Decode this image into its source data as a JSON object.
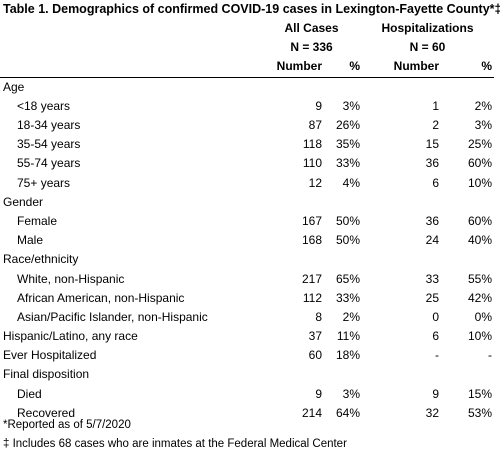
{
  "title": "Table 1. Demographics of confirmed COVID-19 cases in Lexington-Fayette County*‡",
  "groups": [
    {
      "name": "All Cases",
      "n": "N = 336"
    },
    {
      "name": "Hospitalizations",
      "n": "N = 60"
    }
  ],
  "columns": {
    "number": "Number",
    "percent": "%"
  },
  "rows": [
    {
      "label": "Age",
      "indent": false,
      "header": true
    },
    {
      "label": "<18 years",
      "indent": true,
      "n1": "9",
      "p1": "3%",
      "n2": "1",
      "p2": "2%"
    },
    {
      "label": "18-34 years",
      "indent": true,
      "n1": "87",
      "p1": "26%",
      "n2": "2",
      "p2": "3%"
    },
    {
      "label": "35-54 years",
      "indent": true,
      "n1": "118",
      "p1": "35%",
      "n2": "15",
      "p2": "25%"
    },
    {
      "label": "55-74 years",
      "indent": true,
      "n1": "110",
      "p1": "33%",
      "n2": "36",
      "p2": "60%"
    },
    {
      "label": "75+ years",
      "indent": true,
      "n1": "12",
      "p1": "4%",
      "n2": "6",
      "p2": "10%"
    },
    {
      "label": "Gender",
      "indent": false,
      "header": true
    },
    {
      "label": "Female",
      "indent": true,
      "n1": "167",
      "p1": "50%",
      "n2": "36",
      "p2": "60%"
    },
    {
      "label": "Male",
      "indent": true,
      "n1": "168",
      "p1": "50%",
      "n2": "24",
      "p2": "40%"
    },
    {
      "label": "Race/ethnicity",
      "indent": false,
      "header": true
    },
    {
      "label": "White, non-Hispanic",
      "indent": true,
      "n1": "217",
      "p1": "65%",
      "n2": "33",
      "p2": "55%"
    },
    {
      "label": "African American, non-Hispanic",
      "indent": true,
      "n1": "112",
      "p1": "33%",
      "n2": "25",
      "p2": "42%"
    },
    {
      "label": "Asian/Pacific Islander, non-Hispanic",
      "indent": true,
      "n1": "8",
      "p1": "2%",
      "n2": "0",
      "p2": "0%"
    },
    {
      "label": "Hispanic/Latino, any race",
      "indent": false,
      "n1": "37",
      "p1": "11%",
      "n2": "6",
      "p2": "10%"
    },
    {
      "label": "Ever Hospitalized",
      "indent": false,
      "n1": "60",
      "p1": "18%",
      "n2": "-",
      "p2": "-"
    },
    {
      "label": "Final disposition",
      "indent": false,
      "header": true
    },
    {
      "label": "Died",
      "indent": true,
      "n1": "9",
      "p1": "3%",
      "n2": "9",
      "p2": "15%"
    },
    {
      "label": "Recovered",
      "indent": true,
      "n1": "214",
      "p1": "64%",
      "n2": "32",
      "p2": "53%"
    }
  ],
  "footnotes": [
    "*Reported as of 5/7/2020",
    "‡ Includes 68 cases who are inmates at the Federal Medical Center"
  ]
}
